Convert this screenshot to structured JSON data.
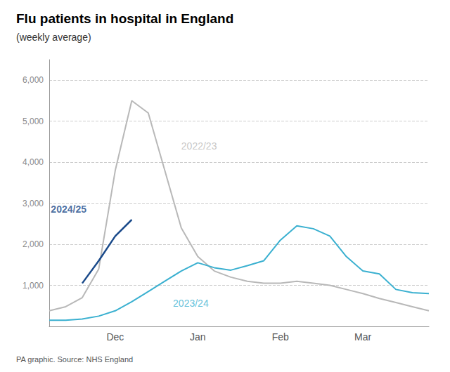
{
  "chart_data": {
    "type": "line",
    "title": "Flu patients in hospital in England",
    "subtitle": "(weekly average)",
    "source": "PA graphic. Source: NHS England",
    "xlim": [
      0,
      23
    ],
    "xticks": [
      {
        "value": 4,
        "label": "Dec"
      },
      {
        "value": 9,
        "label": "Jan"
      },
      {
        "value": 14,
        "label": "Feb"
      },
      {
        "value": 19,
        "label": "Mar"
      }
    ],
    "ylim": [
      0,
      6500
    ],
    "yticks": [
      {
        "value": 1000,
        "label": "1,000"
      },
      {
        "value": 2000,
        "label": "2,000"
      },
      {
        "value": 3000,
        "label": "3,000"
      },
      {
        "value": 4000,
        "label": "4,000"
      },
      {
        "value": 5000,
        "label": "5,000"
      },
      {
        "value": 6000,
        "label": "6,000"
      }
    ],
    "grid": true,
    "series": [
      {
        "name": "2022/23",
        "color": "#b8b8b8",
        "x": [
          0,
          1,
          2,
          3,
          4,
          5,
          6,
          7,
          8,
          9,
          10,
          11,
          12,
          13,
          14,
          15,
          16,
          17,
          18,
          19,
          20,
          21,
          22,
          23
        ],
        "values": [
          380,
          480,
          700,
          1400,
          3800,
          5500,
          5200,
          3800,
          2400,
          1700,
          1350,
          1200,
          1100,
          1050,
          1050,
          1100,
          1050,
          1000,
          900,
          800,
          680,
          580,
          480,
          380
        ]
      },
      {
        "name": "2023/24",
        "color": "#3ab0d0",
        "x": [
          0,
          1,
          2,
          3,
          4,
          5,
          6,
          7,
          8,
          9,
          10,
          11,
          12,
          13,
          14,
          15,
          16,
          17,
          18,
          19,
          20,
          21,
          22,
          23
        ],
        "values": [
          150,
          150,
          180,
          250,
          380,
          600,
          850,
          1100,
          1350,
          1550,
          1430,
          1370,
          1480,
          1600,
          2100,
          2450,
          2380,
          2200,
          1700,
          1350,
          1280,
          900,
          820,
          800
        ]
      },
      {
        "name": "2024/25",
        "color": "#1a4a8a",
        "x": [
          2,
          3,
          4,
          5
        ],
        "values": [
          1050,
          1600,
          2200,
          2600
        ]
      }
    ],
    "annotations": [
      {
        "x": 8.0,
        "y": 4400,
        "text": "2022/23"
      },
      {
        "x": 7.5,
        "y": 560,
        "text": "2023/24"
      },
      {
        "x": 0.1,
        "y": 2850,
        "text": "2024/25"
      }
    ]
  }
}
